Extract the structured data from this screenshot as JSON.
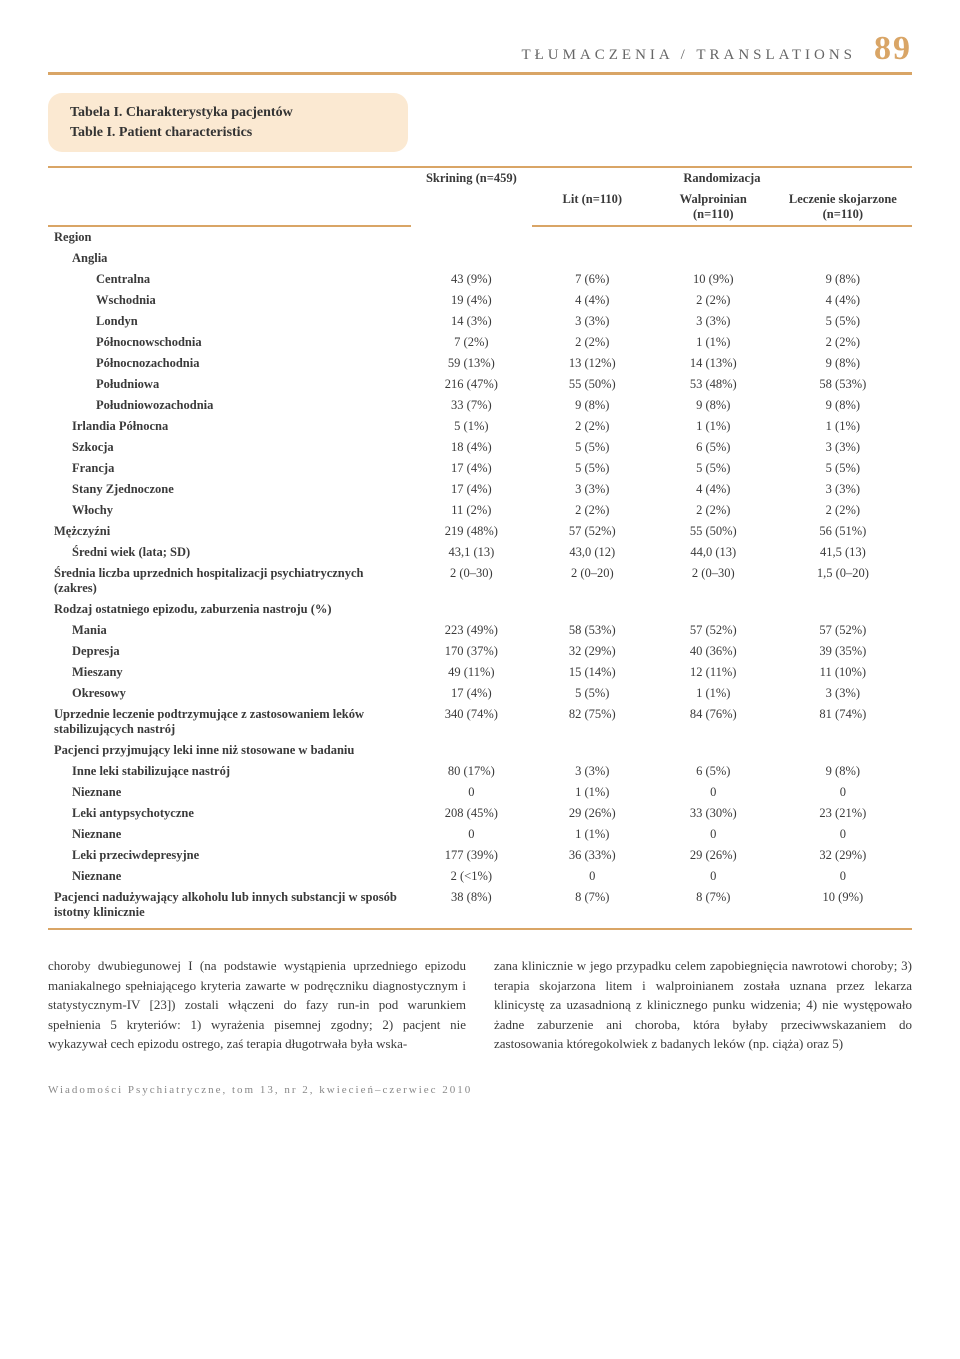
{
  "header": {
    "title": "TŁUMACZENIA / TRANSLATIONS",
    "page_number": "89"
  },
  "caption": {
    "line1": "Tabela I. Charakterystyka pacjentów",
    "line2": "Table I. Patient characteristics"
  },
  "table": {
    "col_skrining": "Skrining (n=459)",
    "col_random": "Randomizacja",
    "col_lit": "Lit (n=110)",
    "col_walp": "Walproinian (n=110)",
    "col_lecz": "Leczenie skojarzone (n=110)",
    "rows": [
      {
        "label": "Region",
        "indent": 0
      },
      {
        "label": "Anglia",
        "indent": 1
      },
      {
        "label": "Centralna",
        "indent": 2,
        "c": [
          "43 (9%)",
          "7 (6%)",
          "10 (9%)",
          "9 (8%)"
        ]
      },
      {
        "label": "Wschodnia",
        "indent": 2,
        "c": [
          "19 (4%)",
          "4 (4%)",
          "2 (2%)",
          "4 (4%)"
        ]
      },
      {
        "label": "Londyn",
        "indent": 2,
        "c": [
          "14 (3%)",
          "3 (3%)",
          "3 (3%)",
          "5 (5%)"
        ]
      },
      {
        "label": "Północnowschodnia",
        "indent": 2,
        "c": [
          "7 (2%)",
          "2 (2%)",
          "1 (1%)",
          "2 (2%)"
        ]
      },
      {
        "label": "Północnozachodnia",
        "indent": 2,
        "c": [
          "59 (13%)",
          "13 (12%)",
          "14 (13%)",
          "9 (8%)"
        ]
      },
      {
        "label": "Południowa",
        "indent": 2,
        "c": [
          "216 (47%)",
          "55 (50%)",
          "53 (48%)",
          "58 (53%)"
        ]
      },
      {
        "label": "Południowozachodnia",
        "indent": 2,
        "c": [
          "33 (7%)",
          "9 (8%)",
          "9 (8%)",
          "9 (8%)"
        ]
      },
      {
        "label": "Irlandia Północna",
        "indent": 1,
        "c": [
          "5 (1%)",
          "2 (2%)",
          "1 (1%)",
          "1 (1%)"
        ]
      },
      {
        "label": "Szkocja",
        "indent": 1,
        "c": [
          "18 (4%)",
          "5 (5%)",
          "6 (5%)",
          "3 (3%)"
        ]
      },
      {
        "label": "Francja",
        "indent": 1,
        "c": [
          "17 (4%)",
          "5 (5%)",
          "5 (5%)",
          "5 (5%)"
        ]
      },
      {
        "label": "Stany Zjednoczone",
        "indent": 1,
        "c": [
          "17 (4%)",
          "3 (3%)",
          "4 (4%)",
          "3 (3%)"
        ]
      },
      {
        "label": "Włochy",
        "indent": 1,
        "c": [
          "11 (2%)",
          "2 (2%)",
          "2 (2%)",
          "2 (2%)"
        ]
      },
      {
        "label": "Mężczyźni",
        "indent": 0,
        "c": [
          "219 (48%)",
          "57 (52%)",
          "55 (50%)",
          "56 (51%)"
        ]
      },
      {
        "label": "Średni wiek (lata; SD)",
        "indent": 1,
        "c": [
          "43,1 (13)",
          "43,0 (12)",
          "44,0 (13)",
          "41,5 (13)"
        ]
      },
      {
        "label": "Średnia liczba uprzednich hospitalizacji psychiatrycznych (zakres)",
        "indent": 0,
        "c": [
          "2 (0–30)",
          "2 (0–20)",
          "2 (0–30)",
          "1,5 (0–20)"
        ]
      },
      {
        "label": "Rodzaj ostatniego epizodu, zaburzenia nastroju (%)",
        "indent": 0
      },
      {
        "label": "Mania",
        "indent": 1,
        "c": [
          "223 (49%)",
          "58 (53%)",
          "57 (52%)",
          "57 (52%)"
        ]
      },
      {
        "label": "Depresja",
        "indent": 1,
        "c": [
          "170 (37%)",
          "32 (29%)",
          "40 (36%)",
          "39 (35%)"
        ]
      },
      {
        "label": "Mieszany",
        "indent": 1,
        "c": [
          "49 (11%)",
          "15 (14%)",
          "12 (11%)",
          "11 (10%)"
        ]
      },
      {
        "label": "Okresowy",
        "indent": 1,
        "c": [
          "17 (4%)",
          "5 (5%)",
          "1 (1%)",
          "3 (3%)"
        ]
      },
      {
        "label": "Uprzednie leczenie podtrzymujące z zastosowaniem leków stabilizujących nastrój",
        "indent": 0,
        "c": [
          "340 (74%)",
          "82 (75%)",
          "84 (76%)",
          "81 (74%)"
        ]
      },
      {
        "label": "Pacjenci przyjmujący leki inne niż stosowane w badaniu",
        "indent": 0
      },
      {
        "label": "Inne leki stabilizujące nastrój",
        "indent": 1,
        "c": [
          "80 (17%)",
          "3 (3%)",
          "6 (5%)",
          "9 (8%)"
        ]
      },
      {
        "label": "Nieznane",
        "indent": 1,
        "c": [
          "0",
          "1 (1%)",
          "0",
          "0"
        ]
      },
      {
        "label": "Leki antypsychotyczne",
        "indent": 1,
        "c": [
          "208 (45%)",
          "29 (26%)",
          "33 (30%)",
          "23 (21%)"
        ]
      },
      {
        "label": "Nieznane",
        "indent": 1,
        "c": [
          "0",
          "1 (1%)",
          "0",
          "0"
        ]
      },
      {
        "label": "Leki przeciwdepresyjne",
        "indent": 1,
        "c": [
          "177 (39%)",
          "36 (33%)",
          "29 (26%)",
          "32 (29%)"
        ]
      },
      {
        "label": "Nieznane",
        "indent": 1,
        "c": [
          "2 (<1%)",
          "0",
          "0",
          "0"
        ]
      },
      {
        "label": "Pacjenci nadużywający alkoholu lub innych substancji w sposób istotny klinicznie",
        "indent": 0,
        "c": [
          "38 (8%)",
          "8 (7%)",
          "8 (7%)",
          "10 (9%)"
        ]
      }
    ]
  },
  "body": {
    "left": "choroby dwubiegunowej I (na podstawie wystąpienia uprzedniego epizodu maniakalnego spełniającego kryteria zawarte w podręczniku diagnostycznym i statystycznym-IV [23]) zostali włączeni do fazy run-in pod warunkiem spełnienia 5 kryteriów: 1) wyrażenia pisemnej zgodny; 2) pacjent nie wykazywał cech epizodu ostrego, zaś terapia długotrwała była wska-",
    "right": "zana klinicznie w jego przypadku celem zapobiegnięcia nawrotowi choroby; 3) terapia skojarzona litem i walproinianem została uznana przez lekarza klinicystę za uzasadnioną z klinicznego punku widzenia; 4) nie występowało żadne zaburzenie ani choroba, która byłaby przeciwwskazaniem do zastosowania któregokolwiek z badanych leków (np. ciąża) oraz 5)"
  },
  "footer": "Wiadomości Psychiatryczne, tom 13, nr 2, kwiecień–czerwiec 2010",
  "style": {
    "accent_color": "#d9a566",
    "caption_bg": "#fbe9d2",
    "text_color": "#3a3a3a"
  }
}
